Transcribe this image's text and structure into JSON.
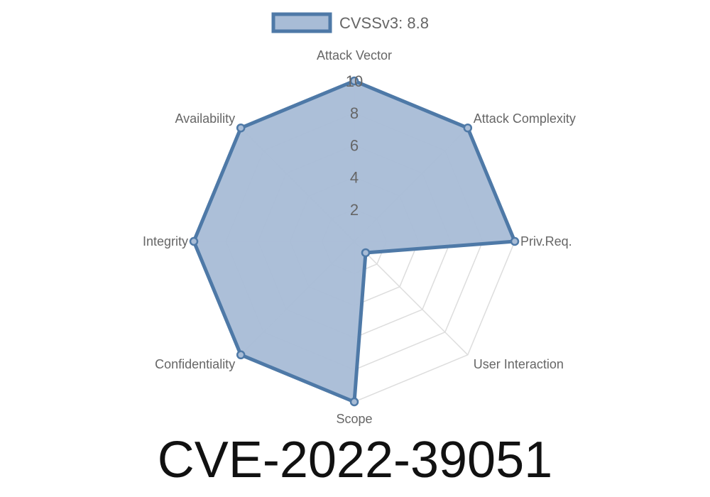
{
  "chart_data": {
    "type": "radar",
    "legend": {
      "label": "CVSSv3: 8.8",
      "position": "top"
    },
    "axes": [
      "Attack Vector",
      "Attack Complexity",
      "Priv.Req.",
      "User Interaction",
      "Scope",
      "Confidentiality",
      "Integrity",
      "Availability"
    ],
    "series": [
      {
        "name": "CVSSv3: 8.8",
        "values": [
          10,
          10,
          10,
          1,
          10,
          10,
          10,
          10
        ]
      }
    ],
    "r_range": [
      0,
      10
    ],
    "ticks": [
      "2",
      "4",
      "6",
      "8",
      "10"
    ],
    "grid": true,
    "colors": {
      "line": "#4e79a7",
      "fill": "#a8bcd6",
      "grid": "#dddddd"
    }
  },
  "title": "CVE-2022-39051"
}
